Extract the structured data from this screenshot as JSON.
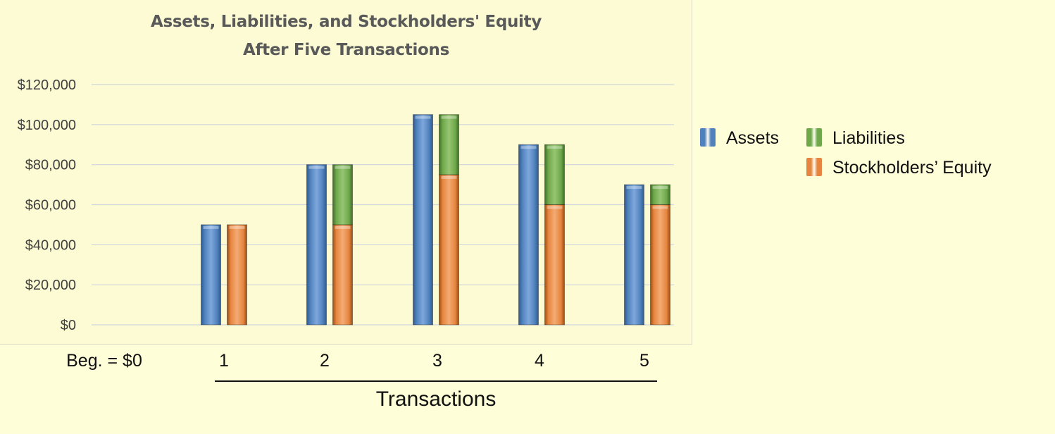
{
  "chart_data": {
    "type": "bar",
    "title": "Assets, Liabilities, and Stockholders' Equity",
    "subtitle": "After Five Transactions",
    "xlabel": "Transactions",
    "ylabel": "",
    "ylim": [
      0,
      120000
    ],
    "y_ticks": [
      "$0",
      "$20,000",
      "$40,000",
      "$60,000",
      "$80,000",
      "$100,000",
      "$120,000"
    ],
    "y_tick_values": [
      0,
      20000,
      40000,
      60000,
      80000,
      100000,
      120000
    ],
    "categories": [
      "Beg. = $0",
      "1",
      "2",
      "3",
      "4",
      "5"
    ],
    "series": [
      {
        "name": "Assets",
        "stack": "assets",
        "color": "#4f81bd",
        "values": [
          0,
          50000,
          80000,
          105000,
          90000,
          70000
        ]
      },
      {
        "name": "Stockholders’ Equity",
        "stack": "claims",
        "color": "#e6853f",
        "values": [
          0,
          50000,
          50000,
          75000,
          60000,
          60000
        ]
      },
      {
        "name": "Liabilities",
        "stack": "claims",
        "color": "#6fa84a",
        "values": [
          0,
          0,
          30000,
          30000,
          30000,
          10000
        ]
      }
    ],
    "legend_position": "right",
    "grid": true
  },
  "legend": {
    "assets": "Assets",
    "liabilities": "Liabilities",
    "equity": "Stockholders’ Equity"
  },
  "colors": {
    "background": "#fefed9",
    "plot_background": "#fcfbd3",
    "gridline": "#cfd6dc",
    "title": "#595959"
  }
}
